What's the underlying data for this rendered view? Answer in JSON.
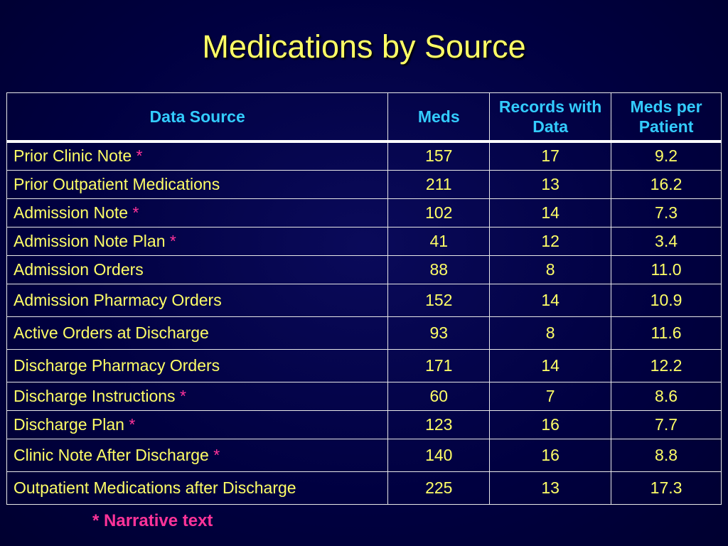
{
  "title": "Medications by Source",
  "table": {
    "headers": [
      "Data Source",
      "Meds",
      "Records with Data",
      "Meds per Patient"
    ],
    "rows": [
      {
        "source": "Prior Clinic Note",
        "narrative": true,
        "meds": "157",
        "records": "17",
        "per_patient": "9.2"
      },
      {
        "source": "Prior Outpatient Medications",
        "narrative": false,
        "meds": "211",
        "records": "13",
        "per_patient": "16.2"
      },
      {
        "source": "Admission Note",
        "narrative": true,
        "meds": "102",
        "records": "14",
        "per_patient": "7.3"
      },
      {
        "source": "Admission Note Plan",
        "narrative": true,
        "meds": "41",
        "records": "12",
        "per_patient": "3.4"
      },
      {
        "source": "Admission Orders",
        "narrative": false,
        "meds": "88",
        "records": "8",
        "per_patient": "11.0"
      },
      {
        "source": "Admission Pharmacy Orders",
        "narrative": false,
        "meds": "152",
        "records": "14",
        "per_patient": "10.9"
      },
      {
        "source": "Active Orders at Discharge",
        "narrative": false,
        "meds": "93",
        "records": "8",
        "per_patient": "11.6"
      },
      {
        "source": "Discharge Pharmacy Orders",
        "narrative": false,
        "meds": "171",
        "records": "14",
        "per_patient": "12.2"
      },
      {
        "source": "Discharge Instructions",
        "narrative": true,
        "meds": "60",
        "records": "7",
        "per_patient": "8.6"
      },
      {
        "source": "Discharge Plan",
        "narrative": true,
        "meds": "123",
        "records": "16",
        "per_patient": "7.7"
      },
      {
        "source": "Clinic Note After Discharge",
        "narrative": true,
        "meds": "140",
        "records": "16",
        "per_patient": "8.8"
      },
      {
        "source": "Outpatient Medications after Discharge",
        "narrative": false,
        "meds": "225",
        "records": "13",
        "per_patient": "17.3"
      }
    ]
  },
  "narrative_marker": "*",
  "footnote": "* Narrative text",
  "colors": {
    "background": "#000040",
    "title": "#ffff66",
    "header_text": "#33ccff",
    "body_text": "#ffff66",
    "marker": "#ff3399",
    "grid": "#e8e8e8"
  }
}
